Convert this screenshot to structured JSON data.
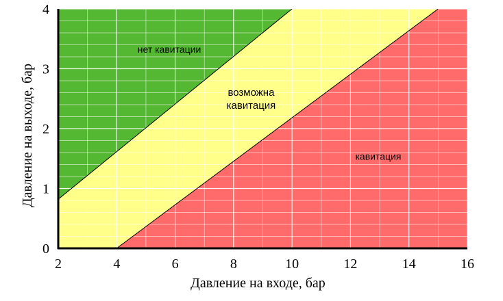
{
  "chart_data": {
    "type": "area",
    "title": "",
    "xlabel": "Давление на входе, бар",
    "ylabel": "Давление на выходе, бар",
    "xlim": [
      2,
      16
    ],
    "ylim": [
      0,
      4
    ],
    "xticks": [
      2,
      4,
      6,
      8,
      10,
      12,
      14,
      16
    ],
    "yticks": [
      0,
      1,
      2,
      3,
      4
    ],
    "grid": true,
    "boundaries": [
      {
        "points": [
          [
            2,
            0.82
          ],
          [
            10,
            4
          ]
        ]
      },
      {
        "points": [
          [
            4,
            0
          ],
          [
            15,
            4
          ]
        ]
      }
    ],
    "regions": [
      {
        "label": "нет кавитации",
        "color": "#55b833"
      },
      {
        "label": "возможна кавитация",
        "label_lines": [
          "возможна",
          "кавитация"
        ],
        "color": "#ffff8a"
      },
      {
        "label": "кавитация",
        "color": "#ff6a6a"
      }
    ]
  }
}
